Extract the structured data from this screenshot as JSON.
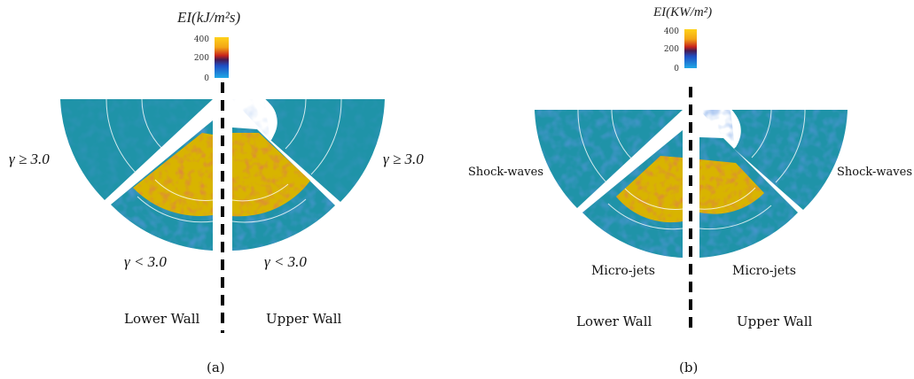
{
  "panel_a": {
    "colorbar": {
      "title": "EI(kJ/m²s)",
      "ticks": [
        "400",
        "200",
        "0"
      ]
    },
    "labels": {
      "upper_left_regime": "γ ≥ 3.0",
      "upper_right_regime": "γ ≥ 3.0",
      "lower_left_regime": "γ < 3.0",
      "lower_right_regime": "γ < 3.0",
      "lower_wall": "Lower Wall",
      "upper_wall": "Upper Wall"
    },
    "caption": "(a)"
  },
  "panel_b": {
    "colorbar": {
      "title": "EI(KW/m²)",
      "ticks": [
        "400",
        "200",
        "0"
      ]
    },
    "labels": {
      "left_shock": "Shock-waves",
      "right_shock": "Shock-waves",
      "left_jets": "Micro-jets",
      "right_jets": "Micro-jets",
      "lower_wall": "Lower Wall",
      "upper_wall": "Upper Wall"
    },
    "caption": "(b)"
  },
  "colors": {
    "background_field": "#1f93a8",
    "cold_blue": "#2c62c8",
    "hot_yellow": "#d8b400",
    "hot_red": "#c0392b",
    "dark_red": "#6b1a1a",
    "ring_white": "#ffffff"
  }
}
